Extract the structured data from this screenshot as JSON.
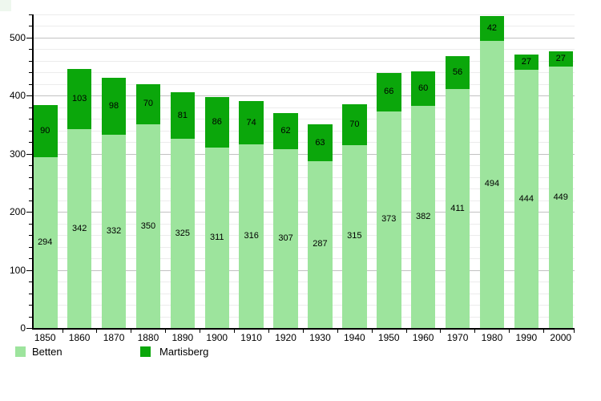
{
  "chart_data": {
    "type": "bar",
    "stacked": true,
    "title": "",
    "xlabel": "",
    "ylabel": "",
    "categories": [
      "1850",
      "1860",
      "1870",
      "1880",
      "1890",
      "1900",
      "1910",
      "1920",
      "1930",
      "1940",
      "1950",
      "1960",
      "1970",
      "1980",
      "1990",
      "2000"
    ],
    "series": [
      {
        "name": "Betten",
        "color": "#9de49d",
        "values": [
          294,
          342,
          332,
          350,
          325,
          311,
          316,
          307,
          287,
          315,
          373,
          382,
          411,
          494,
          444,
          449
        ]
      },
      {
        "name": "Martisberg",
        "color": "#0ba70b",
        "values": [
          90,
          103,
          98,
          70,
          81,
          86,
          74,
          62,
          63,
          70,
          66,
          60,
          56,
          42,
          27,
          27
        ]
      }
    ],
    "ylim": [
      0,
      540
    ],
    "ytick_labels": [
      "0",
      "100",
      "200",
      "300",
      "400",
      "500"
    ],
    "ytick_major_interval": 100,
    "ytick_minor_interval": 20,
    "grid": true,
    "grid_major_color": "#c2c2c2",
    "grid_minor_color": "#ececec",
    "value_labels_shown": true,
    "legend_position": "bottom"
  },
  "legend": {
    "items": [
      {
        "label": "Betten",
        "color": "#9de49d"
      },
      {
        "label": "Martisberg",
        "color": "#0ba70b"
      }
    ]
  }
}
